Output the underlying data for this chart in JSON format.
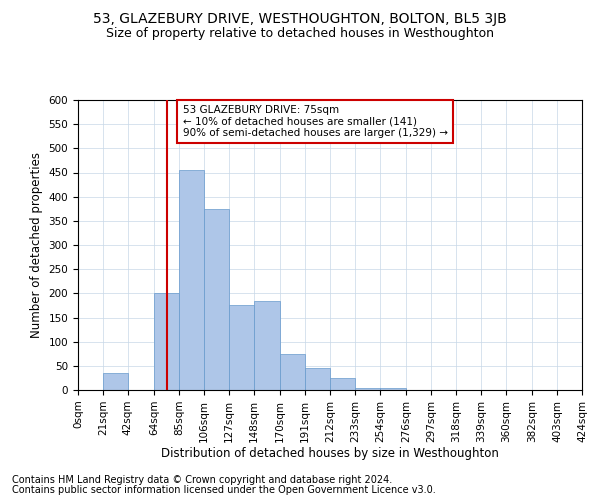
{
  "title": "53, GLAZEBURY DRIVE, WESTHOUGHTON, BOLTON, BL5 3JB",
  "subtitle": "Size of property relative to detached houses in Westhoughton",
  "xlabel": "Distribution of detached houses by size in Westhoughton",
  "ylabel": "Number of detached properties",
  "footer_line1": "Contains HM Land Registry data © Crown copyright and database right 2024.",
  "footer_line2": "Contains public sector information licensed under the Open Government Licence v3.0.",
  "bin_labels": [
    "0sqm",
    "21sqm",
    "42sqm",
    "64sqm",
    "85sqm",
    "106sqm",
    "127sqm",
    "148sqm",
    "170sqm",
    "191sqm",
    "212sqm",
    "233sqm",
    "254sqm",
    "276sqm",
    "297sqm",
    "318sqm",
    "339sqm",
    "360sqm",
    "382sqm",
    "403sqm",
    "424sqm"
  ],
  "bar_values": [
    1,
    35,
    1,
    200,
    455,
    375,
    175,
    185,
    75,
    45,
    25,
    5,
    5,
    1,
    1,
    0,
    1,
    0,
    0,
    1
  ],
  "bin_edges": [
    0,
    21,
    42,
    64,
    85,
    106,
    127,
    148,
    170,
    191,
    212,
    233,
    254,
    276,
    297,
    318,
    339,
    360,
    382,
    403,
    424
  ],
  "bar_color": "#aec6e8",
  "bar_edge_color": "#6699cc",
  "property_line_x": 75,
  "property_line_color": "#cc0000",
  "annotation_text": "53 GLAZEBURY DRIVE: 75sqm\n← 10% of detached houses are smaller (141)\n90% of semi-detached houses are larger (1,329) →",
  "annotation_box_color": "#ffffff",
  "annotation_box_edge_color": "#cc0000",
  "ylim": [
    0,
    600
  ],
  "yticks": [
    0,
    50,
    100,
    150,
    200,
    250,
    300,
    350,
    400,
    450,
    500,
    550,
    600
  ],
  "background_color": "#ffffff",
  "grid_color": "#c8d8e8",
  "title_fontsize": 10,
  "subtitle_fontsize": 9,
  "axis_label_fontsize": 8.5,
  "tick_fontsize": 7.5,
  "annotation_fontsize": 7.5,
  "footer_fontsize": 7
}
